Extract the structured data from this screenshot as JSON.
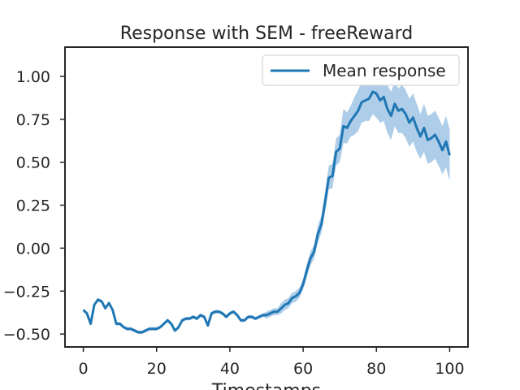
{
  "chart_data": {
    "type": "line",
    "title": "Response with SEM - freeReward",
    "xlabel": "Timestamps",
    "ylabel": "",
    "xlim": [
      -5,
      105
    ],
    "ylim": [
      -0.575,
      1.17
    ],
    "xticks": [
      0,
      20,
      40,
      60,
      80,
      100
    ],
    "yticks": [
      -0.5,
      -0.25,
      0.0,
      0.25,
      0.5,
      0.75,
      1.0
    ],
    "xtick_labels": [
      "0",
      "20",
      "40",
      "60",
      "80",
      "100"
    ],
    "ytick_labels": [
      "−0.50",
      "−0.25",
      "0.00",
      "0.25",
      "0.50",
      "0.75",
      "1.00"
    ],
    "grid": false,
    "legend": {
      "placement": "top-right",
      "entries": [
        "Mean response"
      ]
    },
    "line_color": "#1f77b4",
    "band_color": "#aecde8",
    "series": [
      {
        "name": "Mean response",
        "x": [
          0,
          1,
          2,
          3,
          4,
          5,
          6,
          7,
          8,
          9,
          10,
          11,
          12,
          13,
          14,
          15,
          16,
          17,
          18,
          19,
          20,
          21,
          22,
          23,
          24,
          25,
          26,
          27,
          28,
          29,
          30,
          31,
          32,
          33,
          34,
          35,
          36,
          37,
          38,
          39,
          40,
          41,
          42,
          43,
          44,
          45,
          46,
          47,
          48,
          49,
          50,
          51,
          52,
          53,
          54,
          55,
          56,
          57,
          58,
          59,
          60,
          61,
          62,
          63,
          64,
          65,
          66,
          67,
          68,
          69,
          70,
          71,
          72,
          73,
          74,
          75,
          76,
          77,
          78,
          79,
          80,
          81,
          82,
          83,
          84,
          85,
          86,
          87,
          88,
          89,
          90,
          91,
          92,
          93,
          94,
          95,
          96,
          97,
          98,
          99,
          100
        ],
        "values": [
          -0.36,
          -0.38,
          -0.44,
          -0.33,
          -0.3,
          -0.31,
          -0.35,
          -0.32,
          -0.36,
          -0.44,
          -0.44,
          -0.46,
          -0.47,
          -0.47,
          -0.48,
          -0.49,
          -0.49,
          -0.48,
          -0.47,
          -0.47,
          -0.47,
          -0.46,
          -0.44,
          -0.42,
          -0.44,
          -0.48,
          -0.46,
          -0.42,
          -0.41,
          -0.41,
          -0.4,
          -0.41,
          -0.39,
          -0.4,
          -0.45,
          -0.38,
          -0.37,
          -0.37,
          -0.38,
          -0.4,
          -0.38,
          -0.37,
          -0.39,
          -0.42,
          -0.42,
          -0.4,
          -0.4,
          -0.41,
          -0.4,
          -0.39,
          -0.39,
          -0.38,
          -0.37,
          -0.37,
          -0.35,
          -0.33,
          -0.32,
          -0.29,
          -0.28,
          -0.26,
          -0.21,
          -0.13,
          -0.06,
          -0.02,
          0.08,
          0.14,
          0.27,
          0.41,
          0.42,
          0.56,
          0.58,
          0.71,
          0.7,
          0.74,
          0.77,
          0.8,
          0.85,
          0.86,
          0.87,
          0.91,
          0.9,
          0.86,
          0.88,
          0.81,
          0.77,
          0.84,
          0.8,
          0.81,
          0.78,
          0.73,
          0.76,
          0.7,
          0.65,
          0.7,
          0.63,
          0.64,
          0.66,
          0.62,
          0.57,
          0.62,
          0.54
        ],
        "sem_lower": [
          -0.37,
          -0.39,
          -0.45,
          -0.34,
          -0.31,
          -0.32,
          -0.36,
          -0.33,
          -0.37,
          -0.45,
          -0.45,
          -0.47,
          -0.48,
          -0.48,
          -0.49,
          -0.5,
          -0.5,
          -0.49,
          -0.48,
          -0.48,
          -0.48,
          -0.47,
          -0.45,
          -0.43,
          -0.45,
          -0.49,
          -0.47,
          -0.43,
          -0.42,
          -0.42,
          -0.41,
          -0.42,
          -0.4,
          -0.41,
          -0.46,
          -0.39,
          -0.38,
          -0.38,
          -0.39,
          -0.41,
          -0.39,
          -0.38,
          -0.4,
          -0.43,
          -0.43,
          -0.41,
          -0.41,
          -0.42,
          -0.41,
          -0.4,
          -0.41,
          -0.4,
          -0.39,
          -0.39,
          -0.38,
          -0.36,
          -0.35,
          -0.32,
          -0.31,
          -0.29,
          -0.24,
          -0.17,
          -0.1,
          -0.06,
          0.03,
          0.09,
          0.21,
          0.34,
          0.35,
          0.48,
          0.5,
          0.61,
          0.61,
          0.65,
          0.66,
          0.68,
          0.73,
          0.74,
          0.74,
          0.78,
          0.76,
          0.73,
          0.74,
          0.67,
          0.63,
          0.71,
          0.67,
          0.67,
          0.64,
          0.59,
          0.62,
          0.56,
          0.52,
          0.56,
          0.49,
          0.5,
          0.52,
          0.48,
          0.43,
          0.47,
          0.39
        ],
        "sem_upper": [
          -0.35,
          -0.37,
          -0.43,
          -0.32,
          -0.29,
          -0.3,
          -0.34,
          -0.31,
          -0.35,
          -0.43,
          -0.43,
          -0.45,
          -0.46,
          -0.46,
          -0.47,
          -0.48,
          -0.48,
          -0.47,
          -0.46,
          -0.46,
          -0.46,
          -0.45,
          -0.43,
          -0.41,
          -0.43,
          -0.47,
          -0.45,
          -0.41,
          -0.4,
          -0.4,
          -0.39,
          -0.4,
          -0.38,
          -0.39,
          -0.44,
          -0.37,
          -0.36,
          -0.36,
          -0.37,
          -0.39,
          -0.37,
          -0.36,
          -0.38,
          -0.41,
          -0.41,
          -0.39,
          -0.39,
          -0.4,
          -0.39,
          -0.38,
          -0.37,
          -0.36,
          -0.35,
          -0.35,
          -0.32,
          -0.3,
          -0.29,
          -0.26,
          -0.25,
          -0.23,
          -0.18,
          -0.09,
          -0.02,
          0.02,
          0.13,
          0.19,
          0.33,
          0.48,
          0.49,
          0.64,
          0.66,
          0.81,
          0.79,
          0.83,
          0.88,
          0.92,
          0.97,
          0.98,
          1.0,
          1.04,
          1.04,
          0.99,
          1.02,
          0.95,
          0.91,
          0.97,
          0.93,
          0.95,
          0.92,
          0.87,
          0.9,
          0.84,
          0.78,
          0.84,
          0.77,
          0.78,
          0.8,
          0.76,
          0.71,
          0.77,
          0.69
        ]
      }
    ]
  }
}
